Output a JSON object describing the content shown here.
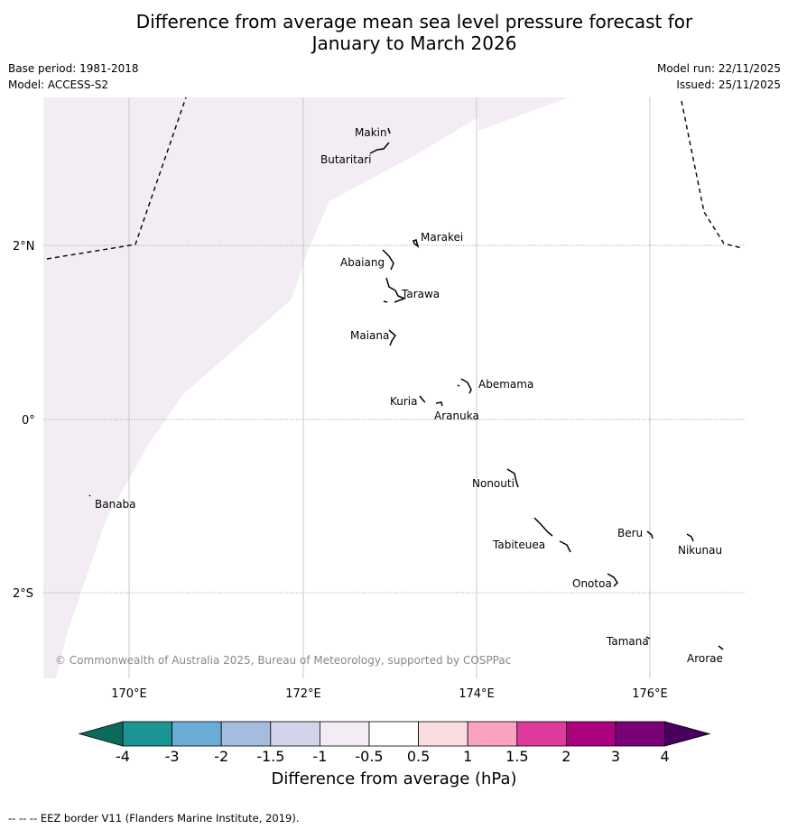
{
  "title": {
    "line1": "Difference from average mean sea level pressure forecast for",
    "line2": "January to March 2026"
  },
  "meta": {
    "base_period": "Base period: 1981-2018",
    "model": "Model: ACCESS-S2",
    "model_run": "Model run: 22/11/2025",
    "issued": "Issued: 25/11/2025"
  },
  "map": {
    "lon_labels": [
      "170°E",
      "172°E",
      "174°E",
      "176°E"
    ],
    "lat_labels": [
      "2°N",
      "0°",
      "2°S"
    ],
    "places": [
      "Makin",
      "Butaritari",
      "Marakei",
      "Abaiang",
      "Tarawa",
      "Maiana",
      "Abemama",
      "Kuria",
      "Aranuka",
      "Banaba",
      "Nonouti",
      "Beru",
      "Nikunau",
      "Tabiteuea",
      "Onotoa",
      "Tamana",
      "Arorae"
    ],
    "copyright": "© Commonwealth of Australia 2025, Bureau of Meteorology, supported by COSPPac",
    "shading_color": "#f3ecf5",
    "shading_category": "-1 to -0.5"
  },
  "colorbar": {
    "ticks": [
      "-4",
      "-3",
      "-2",
      "-1.5",
      "-1",
      "-0.5",
      "0.5",
      "1",
      "1.5",
      "2",
      "3",
      "4"
    ],
    "colors": [
      "#1d9494",
      "#6aacd6",
      "#a6bcde",
      "#d3d4e9",
      "#f3ecf5",
      "#ffffff",
      "#fbdde0",
      "#f9a3c0",
      "#de3b9c",
      "#ac0280",
      "#7a0177"
    ],
    "under_color": "#0b6a5b",
    "over_color": "#4a0060",
    "label": "Difference from average (hPa)"
  },
  "footnote": "--  --  -- EEZ border V11 (Flanders Marine Institute, 2019)."
}
